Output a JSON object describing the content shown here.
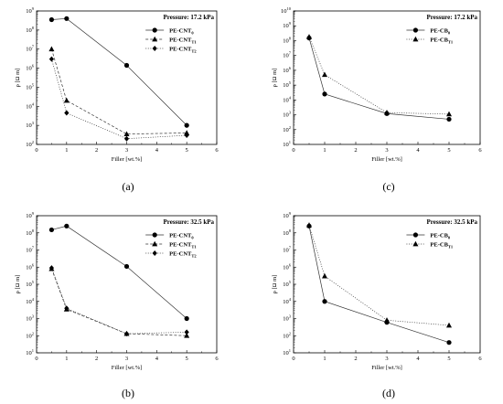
{
  "chart_data": [
    {
      "type": "line",
      "panel_label": "(a)",
      "annotation": "Pressure: 17.2 kPa",
      "xlabel": "Filler [wt.%]",
      "ylabel": "ρ [Ω m]",
      "xlim": [
        0,
        6
      ],
      "ylim_exp": [
        2,
        9
      ],
      "y_scale": "log",
      "x_ticks": [
        "0",
        "1",
        "2",
        "3",
        "4",
        "5",
        "6"
      ],
      "y_tick_exps": [
        2,
        3,
        4,
        5,
        6,
        7,
        8,
        9
      ],
      "legend_position": "top-right",
      "x": [
        0.5,
        1,
        3,
        5
      ],
      "series": [
        {
          "name": "PE-CNT",
          "name_sub": "0",
          "marker": "circle",
          "dash": "solid",
          "values": [
            350000000.0,
            400000000.0,
            1400000.0,
            1000.0
          ]
        },
        {
          "name": "PE-CNT",
          "name_sub": "T1",
          "marker": "triangle",
          "dash": "dash",
          "values": [
            10000000.0,
            20000.0,
            350.0,
            400.0
          ]
        },
        {
          "name": "PE-CNT",
          "name_sub": "T2",
          "marker": "diamond",
          "dash": "dot",
          "values": [
            3000000.0,
            4500.0,
            200.0,
            300.0
          ]
        }
      ]
    },
    {
      "type": "line",
      "panel_label": "(c)",
      "annotation": "Pressure: 17.2 kPa",
      "xlabel": "Filler [wt.%]",
      "ylabel": "ρ [Ω m]",
      "xlim": [
        0,
        6
      ],
      "ylim_exp": [
        1,
        10
      ],
      "y_scale": "log",
      "x_ticks": [
        "0",
        "1",
        "2",
        "3",
        "4",
        "5",
        "6"
      ],
      "y_tick_exps": [
        1,
        2,
        3,
        4,
        5,
        6,
        7,
        8,
        9,
        10
      ],
      "legend_position": "top-right",
      "x": [
        0.5,
        1,
        3,
        5
      ],
      "series": [
        {
          "name": "PE-CB",
          "name_sub": "0",
          "marker": "circle",
          "dash": "solid",
          "values": [
            150000000.0,
            25000.0,
            1200.0,
            500.0
          ]
        },
        {
          "name": "PE-CB",
          "name_sub": "T1",
          "marker": "triangle",
          "dash": "dot",
          "values": [
            180000000.0,
            500000.0,
            1400.0,
            1100.0
          ]
        }
      ]
    },
    {
      "type": "line",
      "panel_label": "(b)",
      "annotation": "Pressure: 32.5 kPa",
      "xlabel": "Filler [wt.%]",
      "ylabel": "ρ [Ω m]",
      "xlim": [
        0,
        6
      ],
      "ylim_exp": [
        1,
        9
      ],
      "y_scale": "log",
      "x_ticks": [
        "0",
        "1",
        "2",
        "3",
        "4",
        "5",
        "6"
      ],
      "y_tick_exps": [
        1,
        2,
        3,
        4,
        5,
        6,
        7,
        8,
        9
      ],
      "legend_position": "top-right",
      "x": [
        0.5,
        1,
        3,
        5
      ],
      "series": [
        {
          "name": "PE-CNT",
          "name_sub": "0",
          "marker": "circle",
          "dash": "solid",
          "values": [
            150000000.0,
            250000000.0,
            1100000.0,
            1000.0
          ]
        },
        {
          "name": "PE-CNT",
          "name_sub": "T1",
          "marker": "triangle",
          "dash": "dash",
          "values": [
            800000.0,
            3500.0,
            130.0,
            100.0
          ]
        },
        {
          "name": "PE-CNT",
          "name_sub": "T2",
          "marker": "diamond",
          "dash": "dot",
          "values": [
            900000.0,
            4000.0,
            130.0,
            160.0
          ]
        }
      ]
    },
    {
      "type": "line",
      "panel_label": "(d)",
      "annotation": "Pressure: 32.5 kPa",
      "xlabel": "Filler [wt.%]",
      "ylabel": "ρ [Ω m]",
      "xlim": [
        0,
        6
      ],
      "ylim_exp": [
        1,
        9
      ],
      "y_scale": "log",
      "x_ticks": [
        "0",
        "1",
        "2",
        "3",
        "4",
        "5",
        "6"
      ],
      "y_tick_exps": [
        1,
        2,
        3,
        4,
        5,
        6,
        7,
        8,
        9
      ],
      "legend_position": "top-right",
      "x": [
        0.5,
        1,
        3,
        5
      ],
      "series": [
        {
          "name": "PE-CB",
          "name_sub": "0",
          "marker": "circle",
          "dash": "solid",
          "values": [
            250000000.0,
            10000.0,
            600.0,
            40.0
          ]
        },
        {
          "name": "PE-CB",
          "name_sub": "T1",
          "marker": "triangle",
          "dash": "dot",
          "values": [
            280000000.0,
            300000.0,
            800.0,
            400.0
          ]
        }
      ]
    }
  ]
}
